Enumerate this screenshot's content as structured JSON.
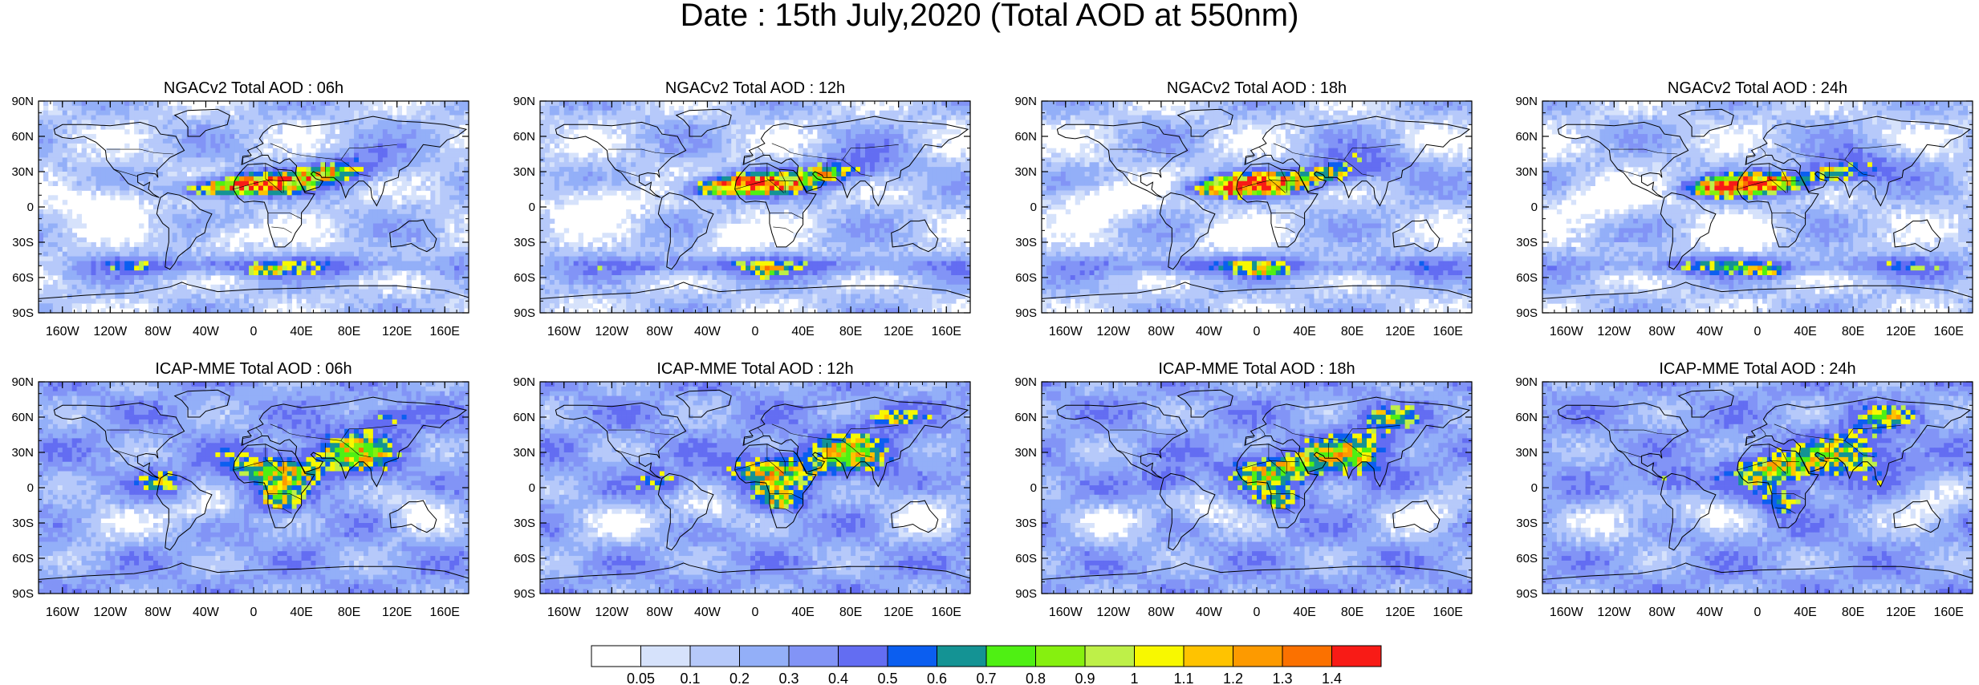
{
  "figure": {
    "title": "Date : 15th July,2020 (Total AOD at 550nm)"
  },
  "colors": {
    "land_outline": "#000000",
    "scale": [
      "#ffffff",
      "#d6e2fb",
      "#b6c9fa",
      "#93aff8",
      "#8294f6",
      "#636df2",
      "#0b5ef0",
      "#149394",
      "#4ff013",
      "#86f00f",
      "#bef048",
      "#f8f800",
      "#ffc300",
      "#fd9a00",
      "#fb7100",
      "#f81b16"
    ]
  },
  "axes": {
    "lon_labels": [
      "160W",
      "120W",
      "80W",
      "40W",
      "0",
      "40E",
      "80E",
      "120E",
      "160E"
    ],
    "lat_labels": [
      "90N",
      "60N",
      "30N",
      "0",
      "30S",
      "60S",
      "90S"
    ]
  },
  "colorbar": {
    "labels": [
      "0.05",
      "0.1",
      "0.2",
      "0.3",
      "0.4",
      "0.5",
      "0.6",
      "0.7",
      "0.8",
      "0.9",
      "1",
      "1.1",
      "1.2",
      "1.3",
      "1.4"
    ],
    "colors": [
      "#ffffff",
      "#d6e2fb",
      "#b6c9fa",
      "#93aff8",
      "#8294f6",
      "#636df2",
      "#0b5ef0",
      "#149394",
      "#4ff013",
      "#86f00f",
      "#bef048",
      "#f8f800",
      "#ffc300",
      "#fd9a00",
      "#fb7100",
      "#f81b16"
    ]
  },
  "panels": [
    {
      "title": "NGACv2 Total AOD : 06h",
      "model": "NGACv2"
    },
    {
      "title": "NGACv2 Total AOD : 12h",
      "model": "NGACv2"
    },
    {
      "title": "NGACv2 Total AOD : 18h",
      "model": "NGACv2"
    },
    {
      "title": "NGACv2 Total AOD : 24h",
      "model": "NGACv2"
    },
    {
      "title": "ICAP-MME Total AOD : 06h",
      "model": "ICAP-MME"
    },
    {
      "title": "ICAP-MME Total AOD : 12h",
      "model": "ICAP-MME"
    },
    {
      "title": "ICAP-MME Total AOD : 18h",
      "model": "ICAP-MME"
    },
    {
      "title": "ICAP-MME Total AOD : 24h",
      "model": "ICAP-MME"
    }
  ]
}
